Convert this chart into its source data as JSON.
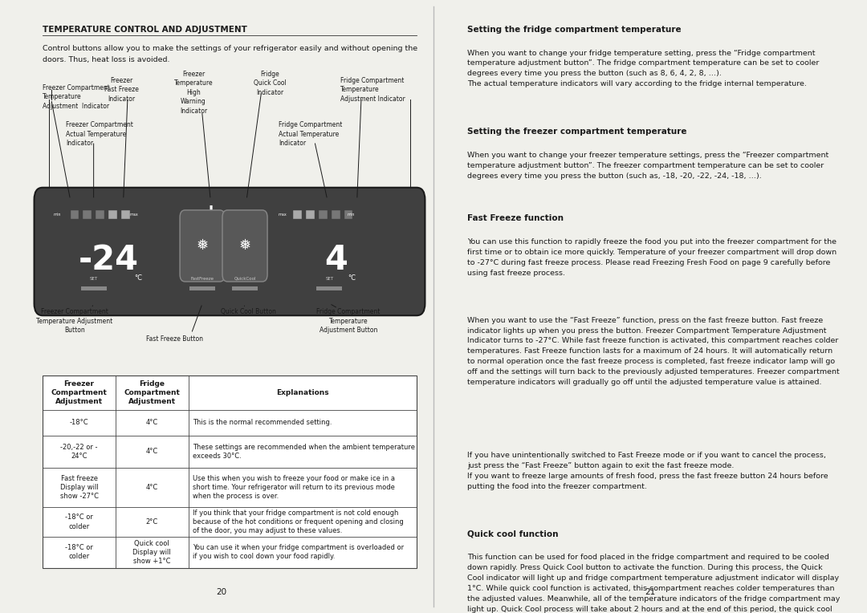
{
  "bg_color": "#f0f0eb",
  "page_bg": "#ffffff",
  "text_color": "#1a1a1a",
  "left_page": {
    "title": "TEMPERATURE CONTROL AND ADJUSTMENT",
    "intro": "Control buttons allow you to make the settings of your refrigerator easily and without opening the\ndoors. Thus, heat loss is avoided.",
    "table_headers": [
      "Freezer\nCompartment\nAdjustment",
      "Fridge\nCompartment\nAdjustment",
      "Explanations"
    ],
    "table_rows": [
      [
        "-18°C",
        "4°C",
        "This is the normal recommended setting."
      ],
      [
        "-20,-22 or -\n24°C",
        "4°C",
        "These settings are recommended when the ambient temperature\nexceeds 30°C."
      ],
      [
        "Fast freeze\nDisplay will\nshow -27°C",
        "4°C",
        "Use this when you wish to freeze your food or make ice in a\nshort time. Your refrigerator will return to its previous mode\nwhen the process is over."
      ],
      [
        "-18°C or\ncolder",
        "2°C",
        "If you think that your fridge compartment is not cold enough\nbecause of the hot conditions or frequent opening and closing\nof the door, you may adjust to these values."
      ],
      [
        "-18°C or\ncolder",
        "Quick cool\nDisplay will\nshow +1°C",
        "You can use it when your fridge compartment is overloaded or\nif you wish to cool down your food rapidly."
      ]
    ],
    "page_num": "20"
  },
  "right_page": {
    "section1_title": "Setting the fridge compartment temperature",
    "section2_title": "Setting the freezer compartment temperature",
    "section3_title": "Fast Freeze function",
    "section4_title": "Quick cool function",
    "page_num": "21"
  }
}
